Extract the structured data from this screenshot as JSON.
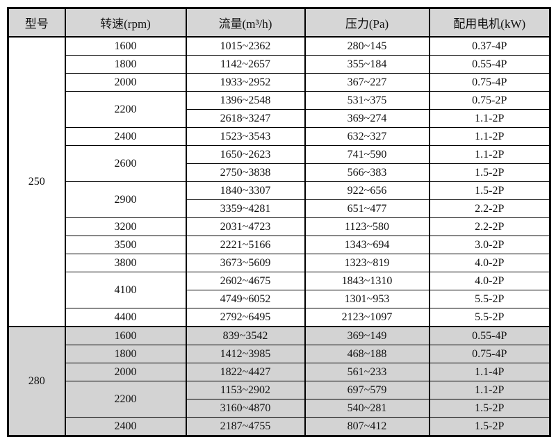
{
  "colors": {
    "header_bg": "#d6d6d6",
    "shaded_section_bg": "#d3d3d3",
    "border": "#000000",
    "text": "#111111",
    "page_bg": "#ffffff"
  },
  "table": {
    "columns": [
      {
        "key": "model",
        "label": "型号"
      },
      {
        "key": "rpm",
        "label": "转速(rpm)"
      },
      {
        "key": "flow",
        "label": "流量(m³/h)"
      },
      {
        "key": "pressure",
        "label": "压力(Pa)"
      },
      {
        "key": "motor",
        "label": "配用电机(kW)"
      }
    ],
    "groups": [
      {
        "model": "250",
        "shaded": false,
        "rows": [
          {
            "rpm": "1600",
            "rpm_span": 1,
            "flow": "1015~2362",
            "pressure": "280~145",
            "motor": "0.37-4P"
          },
          {
            "rpm": "1800",
            "rpm_span": 1,
            "flow": "1142~2657",
            "pressure": "355~184",
            "motor": "0.55-4P"
          },
          {
            "rpm": "2000",
            "rpm_span": 1,
            "flow": "1933~2952",
            "pressure": "367~227",
            "motor": "0.75-4P"
          },
          {
            "rpm": "2200",
            "rpm_span": 2,
            "flow": "1396~2548",
            "pressure": "531~375",
            "motor": "0.75-2P"
          },
          {
            "flow": "2618~3247",
            "pressure": "369~274",
            "motor": "1.1-2P"
          },
          {
            "rpm": "2400",
            "rpm_span": 1,
            "flow": "1523~3543",
            "pressure": "632~327",
            "motor": "1.1-2P"
          },
          {
            "rpm": "2600",
            "rpm_span": 2,
            "flow": "1650~2623",
            "pressure": "741~590",
            "motor": "1.1-2P"
          },
          {
            "flow": "2750~3838",
            "pressure": "566~383",
            "motor": "1.5-2P"
          },
          {
            "rpm": "2900",
            "rpm_span": 2,
            "flow": "1840~3307",
            "pressure": "922~656",
            "motor": "1.5-2P"
          },
          {
            "flow": "3359~4281",
            "pressure": "651~477",
            "motor": "2.2-2P"
          },
          {
            "rpm": "3200",
            "rpm_span": 1,
            "flow": "2031~4723",
            "pressure": "1123~580",
            "motor": "2.2-2P"
          },
          {
            "rpm": "3500",
            "rpm_span": 1,
            "flow": "2221~5166",
            "pressure": "1343~694",
            "motor": "3.0-2P"
          },
          {
            "rpm": "3800",
            "rpm_span": 1,
            "flow": "3673~5609",
            "pressure": "1323~819",
            "motor": "4.0-2P"
          },
          {
            "rpm": "4100",
            "rpm_span": 2,
            "flow": "2602~4675",
            "pressure": "1843~1310",
            "motor": "4.0-2P"
          },
          {
            "flow": "4749~6052",
            "pressure": "1301~953",
            "motor": "5.5-2P"
          },
          {
            "rpm": "4400",
            "rpm_span": 1,
            "flow": "2792~6495",
            "pressure": "2123~1097",
            "motor": "5.5-2P"
          }
        ]
      },
      {
        "model": "280",
        "shaded": true,
        "rows": [
          {
            "rpm": "1600",
            "rpm_span": 1,
            "flow": "839~3542",
            "pressure": "369~149",
            "motor": "0.55-4P"
          },
          {
            "rpm": "1800",
            "rpm_span": 1,
            "flow": "1412~3985",
            "pressure": "468~188",
            "motor": "0.75-4P"
          },
          {
            "rpm": "2000",
            "rpm_span": 1,
            "flow": "1822~4427",
            "pressure": "561~233",
            "motor": "1.1-4P"
          },
          {
            "rpm": "2200",
            "rpm_span": 2,
            "flow": "1153~2902",
            "pressure": "697~579",
            "motor": "1.1-2P"
          },
          {
            "flow": "3160~4870",
            "pressure": "540~281",
            "motor": "1.5-2P"
          },
          {
            "rpm": "2400",
            "rpm_span": 1,
            "flow": "2187~4755",
            "pressure": "807~412",
            "motor": "1.5-2P"
          }
        ]
      }
    ]
  }
}
